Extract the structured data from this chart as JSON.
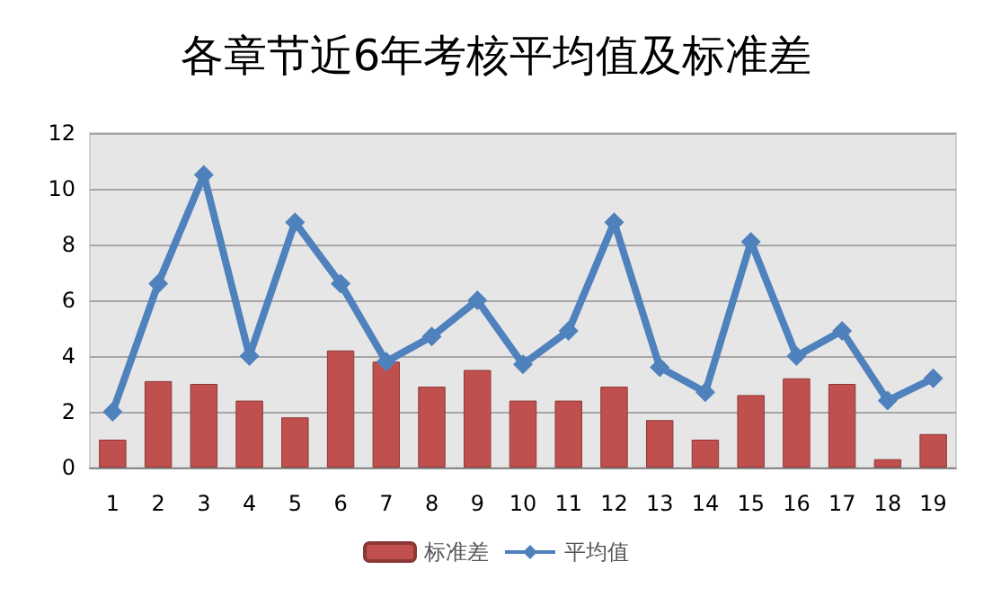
{
  "chart_data": {
    "type": "bar",
    "title": "各章节近6年考核平均值及标准差",
    "categories": [
      "1",
      "2",
      "3",
      "4",
      "5",
      "6",
      "7",
      "8",
      "9",
      "10",
      "11",
      "12",
      "13",
      "14",
      "15",
      "16",
      "17",
      "18",
      "19"
    ],
    "series": [
      {
        "name": "标准差",
        "color": "#c0504d",
        "values": [
          1.0,
          3.1,
          3.0,
          2.4,
          1.8,
          4.2,
          3.8,
          2.9,
          3.5,
          2.4,
          2.4,
          2.9,
          1.7,
          1.0,
          2.6,
          3.2,
          3.0,
          0.3,
          1.2
        ]
      },
      {
        "name": "平均值",
        "type": "line",
        "color": "#4f81bd",
        "marker": "diamond",
        "values": [
          2.0,
          6.6,
          10.5,
          4.0,
          8.8,
          6.6,
          3.8,
          4.7,
          6.0,
          3.7,
          4.9,
          8.8,
          3.6,
          2.7,
          8.1,
          4.0,
          4.9,
          2.4,
          3.2
        ]
      }
    ],
    "ylim": [
      0,
      12
    ],
    "yticks": [
      0,
      2,
      4,
      6,
      8,
      10,
      12
    ],
    "grid": "y",
    "legend": "bottom"
  }
}
